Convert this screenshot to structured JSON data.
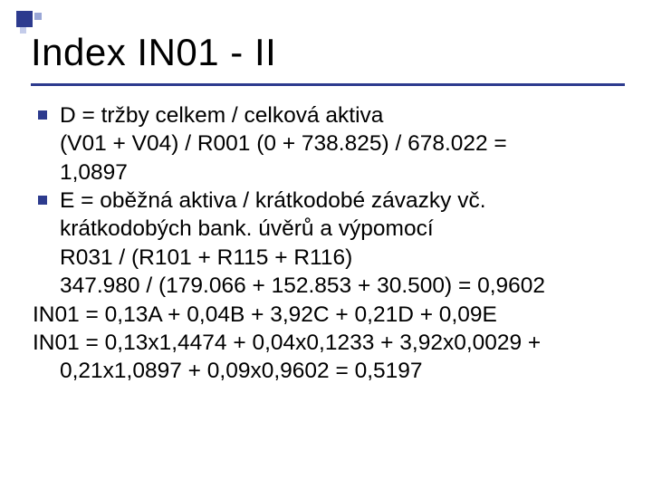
{
  "title": "Index IN01 - II",
  "accent_color": "#2d3b8e",
  "background_color": "#ffffff",
  "text_color": "#000000",
  "title_fontsize": 42,
  "body_fontsize": 24.5,
  "bullets": [
    {
      "lines": [
        "D = tržby celkem / celková aktiva",
        "(V01 + V04) / R001 (0 + 738.825) / 678.022 =",
        "1,0897"
      ]
    },
    {
      "lines": [
        "E = oběžná aktiva / krátkodobé závazky vč.",
        "krátkodobých bank. úvěrů a výpomocí",
        "R031 / (R101 + R115 + R116)",
        "347.980 / (179.066 + 152.853 + 30.500) = 0,9602"
      ]
    }
  ],
  "formula_lines": [
    "IN01 = 0,13A + 0,04B + 3,92C + 0,21D + 0,09E",
    "IN01 = 0,13x1,4474 + 0,04x0,1233 + 3,92x0,0029 +",
    "0,21x1,0897 + 0,09x0,9602 = 0,5197"
  ]
}
